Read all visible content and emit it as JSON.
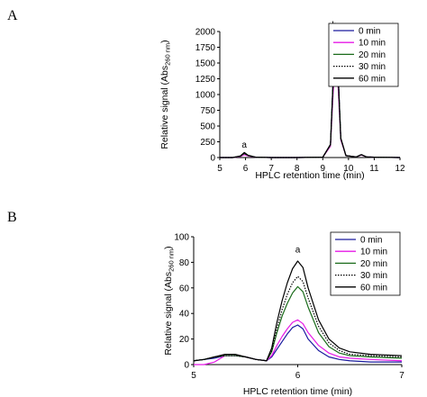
{
  "chart_data": [
    {
      "panel_label": "A",
      "type": "line",
      "xlabel": "HPLC retention time (min)",
      "ylabel_main": "Relative signal (Abs",
      "ylabel_sub": "260 nm",
      "ylabel_end": ")",
      "xlim": [
        5,
        12
      ],
      "ylim": [
        0,
        2000
      ],
      "xticks": [
        5,
        6,
        7,
        8,
        9,
        10,
        11,
        12
      ],
      "yticks": [
        0,
        250,
        500,
        750,
        1000,
        1250,
        1500,
        1750,
        2000
      ],
      "legend_position": "top-right",
      "annotations": [
        {
          "text": "a",
          "x": 5.95,
          "y": 100
        },
        {
          "text": "b",
          "x": 9.45,
          "y": 2000
        }
      ],
      "series": [
        {
          "name": "0 min",
          "color": "#1a1a9e",
          "dash": "solid",
          "x": [
            5,
            5.5,
            5.8,
            5.95,
            6.1,
            6.4,
            7,
            8,
            9,
            9.3,
            9.4,
            9.5,
            9.6,
            9.7,
            9.9,
            10.3,
            10.5,
            10.7,
            11,
            12
          ],
          "y": [
            0,
            0,
            20,
            60,
            30,
            5,
            0,
            0,
            5,
            200,
            1200,
            1900,
            1300,
            300,
            30,
            10,
            45,
            10,
            5,
            0
          ]
        },
        {
          "name": "10 min",
          "color": "#e619e6",
          "dash": "solid",
          "x": [
            5,
            5.5,
            5.8,
            5.95,
            6.1,
            6.4,
            7,
            8,
            9,
            9.3,
            9.4,
            9.5,
            9.6,
            9.7,
            9.9,
            10.3,
            10.5,
            10.7,
            11,
            12
          ],
          "y": [
            0,
            0,
            15,
            45,
            25,
            5,
            0,
            0,
            5,
            180,
            1000,
            1600,
            1100,
            280,
            30,
            10,
            40,
            10,
            5,
            0
          ]
        },
        {
          "name": "20 min",
          "color": "#1a6b1a",
          "dash": "solid",
          "x": [
            5,
            5.5,
            5.8,
            5.95,
            6.1,
            6.4,
            7,
            8,
            9,
            9.3,
            9.4,
            9.5,
            9.6,
            9.7,
            9.9,
            10.3,
            10.5,
            10.7,
            11,
            12
          ],
          "y": [
            0,
            0,
            22,
            65,
            32,
            5,
            0,
            0,
            5,
            200,
            1150,
            1850,
            1250,
            300,
            30,
            10,
            45,
            10,
            5,
            0
          ]
        },
        {
          "name": "30 min",
          "color": "#000000",
          "dash": "dotted",
          "x": [
            5,
            5.5,
            5.8,
            5.95,
            6.1,
            6.4,
            7,
            8,
            9,
            9.3,
            9.4,
            9.5,
            9.6,
            9.7,
            9.9,
            10.3,
            10.5,
            10.7,
            11,
            12
          ],
          "y": [
            0,
            0,
            24,
            70,
            34,
            5,
            0,
            0,
            5,
            205,
            1180,
            1880,
            1270,
            305,
            30,
            10,
            45,
            10,
            5,
            0
          ]
        },
        {
          "name": "60 min",
          "color": "#000000",
          "dash": "solid",
          "x": [
            5,
            5.5,
            5.8,
            5.95,
            6.1,
            6.4,
            7,
            8,
            9,
            9.3,
            9.4,
            9.5,
            9.6,
            9.7,
            9.9,
            10.3,
            10.5,
            10.7,
            11,
            12
          ],
          "y": [
            0,
            0,
            26,
            80,
            36,
            5,
            0,
            0,
            5,
            210,
            1200,
            1930,
            1300,
            310,
            30,
            10,
            45,
            10,
            5,
            0
          ]
        }
      ]
    },
    {
      "panel_label": "B",
      "type": "line",
      "xlabel": "HPLC retention time (min)",
      "ylabel_main": "Relative signal (Abs",
      "ylabel_sub": "260 nm",
      "ylabel_end": ")",
      "xlim": [
        5,
        7
      ],
      "ylim": [
        0,
        100
      ],
      "xticks": [
        5,
        6,
        7
      ],
      "yticks": [
        0,
        20,
        40,
        60,
        80,
        100
      ],
      "legend_position": "top-right",
      "annotations": [
        {
          "text": "a",
          "x": 6.0,
          "y": 85
        }
      ],
      "series": [
        {
          "name": "0 min",
          "color": "#1a1a9e",
          "dash": "solid",
          "x": [
            5,
            5.1,
            5.2,
            5.3,
            5.4,
            5.5,
            5.6,
            5.7,
            5.75,
            5.8,
            5.85,
            5.9,
            5.95,
            6.0,
            6.05,
            6.1,
            6.2,
            6.3,
            6.4,
            6.5,
            6.7,
            7
          ],
          "y": [
            3,
            4,
            5,
            7,
            7,
            6,
            4,
            3,
            6,
            12,
            18,
            24,
            29,
            31,
            28,
            20,
            11,
            6,
            4,
            3,
            2,
            2
          ]
        },
        {
          "name": "10 min",
          "color": "#e619e6",
          "dash": "solid",
          "x": [
            5,
            5.1,
            5.2,
            5.3,
            5.4,
            5.5,
            5.6,
            5.7,
            5.75,
            5.8,
            5.85,
            5.9,
            5.95,
            6.0,
            6.05,
            6.1,
            6.2,
            6.3,
            6.4,
            6.5,
            6.7,
            7
          ],
          "y": [
            0,
            0,
            2,
            7,
            7,
            6,
            4,
            3,
            7,
            15,
            22,
            28,
            33,
            35,
            32,
            25,
            15,
            9,
            6,
            5,
            4,
            3
          ]
        },
        {
          "name": "20 min",
          "color": "#1a6b1a",
          "dash": "solid",
          "x": [
            5,
            5.1,
            5.2,
            5.3,
            5.4,
            5.5,
            5.6,
            5.7,
            5.75,
            5.8,
            5.85,
            5.9,
            5.95,
            6.0,
            6.05,
            6.1,
            6.2,
            6.3,
            6.4,
            6.5,
            6.7,
            7
          ],
          "y": [
            3,
            4,
            6,
            7,
            7,
            6,
            4,
            3,
            10,
            25,
            38,
            48,
            56,
            61,
            57,
            45,
            25,
            14,
            9,
            7,
            6,
            5
          ]
        },
        {
          "name": "30 min",
          "color": "#000000",
          "dash": "dotted",
          "x": [
            5,
            5.1,
            5.2,
            5.3,
            5.4,
            5.5,
            5.6,
            5.7,
            5.75,
            5.8,
            5.85,
            5.9,
            5.95,
            6.0,
            6.05,
            6.1,
            6.2,
            6.3,
            6.4,
            6.5,
            6.7,
            7
          ],
          "y": [
            3,
            4,
            6,
            7,
            7,
            6,
            4,
            3,
            11,
            28,
            43,
            55,
            64,
            69,
            65,
            52,
            30,
            17,
            11,
            8,
            7,
            6
          ]
        },
        {
          "name": "60 min",
          "color": "#000000",
          "dash": "solid",
          "x": [
            5,
            5.1,
            5.2,
            5.3,
            5.4,
            5.5,
            5.6,
            5.7,
            5.75,
            5.8,
            5.85,
            5.9,
            5.95,
            6.0,
            6.05,
            6.1,
            6.2,
            6.3,
            6.4,
            6.5,
            6.7,
            7
          ],
          "y": [
            3,
            4,
            6,
            8,
            8,
            6,
            4,
            3,
            13,
            33,
            50,
            64,
            75,
            81,
            76,
            60,
            35,
            20,
            13,
            10,
            8,
            7
          ]
        }
      ]
    }
  ]
}
